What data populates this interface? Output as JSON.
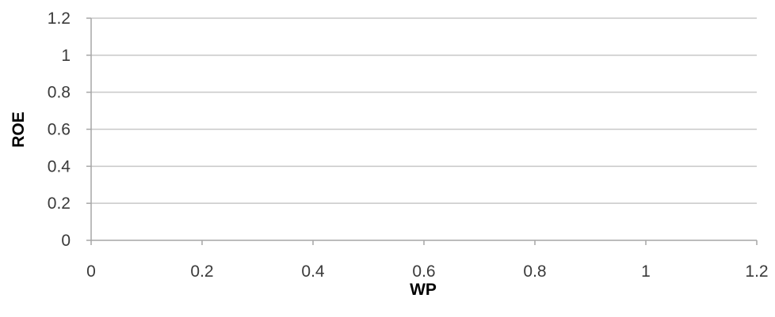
{
  "chart_data": {
    "type": "scatter",
    "title": "",
    "xlabel": "WP",
    "ylabel": "ROE",
    "xlim": [
      0,
      1.2
    ],
    "ylim": [
      0,
      1.2
    ],
    "x_ticks": [
      "0",
      "0.2",
      "0.4",
      "0.6",
      "0.8",
      "1",
      "1.2"
    ],
    "y_ticks": [
      "0",
      "0.2",
      "0.4",
      "0.6",
      "0.8",
      "1",
      "1.2"
    ],
    "grid": "horizontal",
    "legend": "none",
    "series": [
      {
        "x": [],
        "y": []
      }
    ],
    "colors": {
      "gridline": "#c8c8c8",
      "axis": "#a6a6a6",
      "tick_text": "#3a3a3a"
    }
  }
}
